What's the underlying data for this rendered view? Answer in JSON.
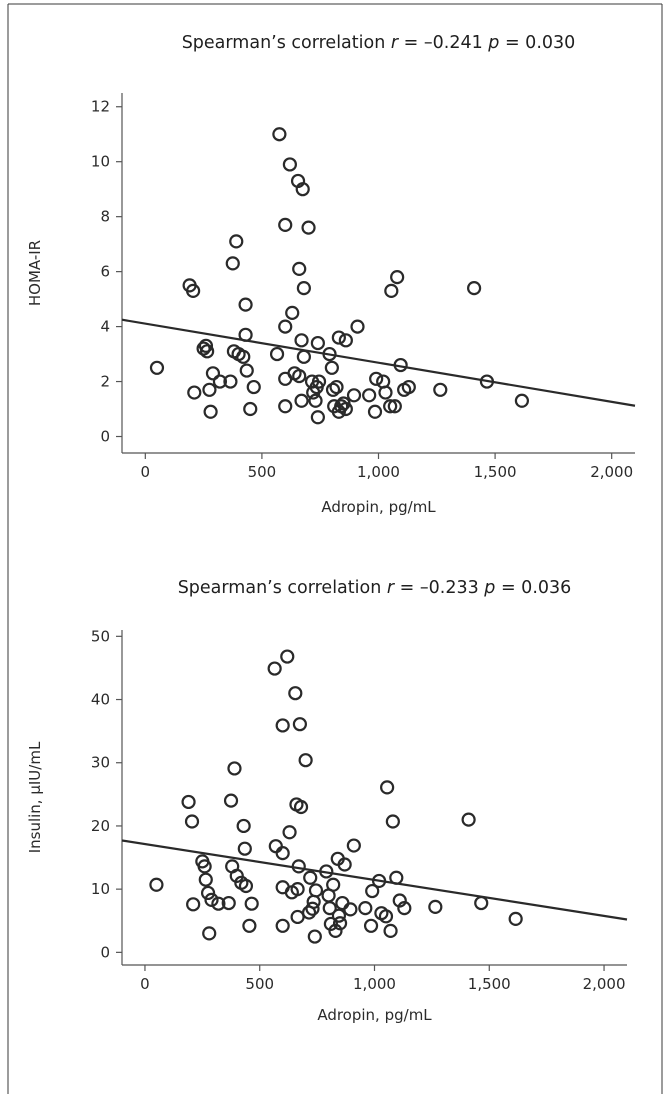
{
  "chart_data": [
    {
      "type": "scatter",
      "title": {
        "pre": "Spearman’s correlation ",
        "r_sym": "r",
        "r_val": " = –0.241 ",
        "p_sym": "p",
        "p_val": " = 0.030"
      },
      "xlabel": "Adropin, pg/mL",
      "ylabel": "HOMA-IR",
      "xlim": [
        -100,
        2100
      ],
      "ylim": [
        -0.6,
        12.5
      ],
      "xticks": [
        0,
        500,
        1000,
        1500,
        2000
      ],
      "xtick_labels": [
        "0",
        "500",
        "1,000",
        "1,500",
        "2,000"
      ],
      "yticks": [
        0,
        2,
        4,
        6,
        8,
        10,
        12
      ],
      "ytick_labels": [
        "0",
        "2",
        "4",
        "6",
        "8",
        "10",
        "12"
      ],
      "regression": {
        "x": [
          -100,
          2100
        ],
        "y": [
          4.25,
          1.12
        ]
      },
      "points": [
        [
          50,
          2.5
        ],
        [
          190,
          5.5
        ],
        [
          205,
          5.3
        ],
        [
          210,
          1.6
        ],
        [
          250,
          3.2
        ],
        [
          260,
          3.3
        ],
        [
          265,
          3.1
        ],
        [
          275,
          1.7
        ],
        [
          280,
          0.9
        ],
        [
          290,
          2.3
        ],
        [
          320,
          2.0
        ],
        [
          365,
          2.0
        ],
        [
          375,
          6.3
        ],
        [
          380,
          3.1
        ],
        [
          390,
          7.1
        ],
        [
          400,
          3.0
        ],
        [
          420,
          2.9
        ],
        [
          430,
          4.8
        ],
        [
          430,
          3.7
        ],
        [
          435,
          2.4
        ],
        [
          450,
          1.0
        ],
        [
          465,
          1.8
        ],
        [
          565,
          3.0
        ],
        [
          575,
          11.0
        ],
        [
          600,
          1.1
        ],
        [
          600,
          2.1
        ],
        [
          600,
          4.0
        ],
        [
          600,
          7.7
        ],
        [
          620,
          9.9
        ],
        [
          630,
          4.5
        ],
        [
          640,
          2.3
        ],
        [
          655,
          9.3
        ],
        [
          660,
          6.1
        ],
        [
          660,
          2.2
        ],
        [
          670,
          1.3
        ],
        [
          670,
          3.5
        ],
        [
          675,
          9.0
        ],
        [
          680,
          2.9
        ],
        [
          680,
          5.4
        ],
        [
          700,
          7.6
        ],
        [
          715,
          2.0
        ],
        [
          720,
          1.6
        ],
        [
          730,
          1.3
        ],
        [
          735,
          1.8
        ],
        [
          740,
          0.7
        ],
        [
          740,
          3.4
        ],
        [
          745,
          2.0
        ],
        [
          790,
          3.0
        ],
        [
          800,
          2.5
        ],
        [
          805,
          1.7
        ],
        [
          810,
          1.1
        ],
        [
          820,
          1.8
        ],
        [
          830,
          0.9
        ],
        [
          830,
          3.6
        ],
        [
          840,
          1.1
        ],
        [
          850,
          1.2
        ],
        [
          860,
          3.5
        ],
        [
          860,
          1.0
        ],
        [
          895,
          1.5
        ],
        [
          910,
          4.0
        ],
        [
          960,
          1.5
        ],
        [
          985,
          0.9
        ],
        [
          990,
          2.1
        ],
        [
          1020,
          2.0
        ],
        [
          1030,
          1.6
        ],
        [
          1050,
          1.1
        ],
        [
          1055,
          5.3
        ],
        [
          1070,
          1.1
        ],
        [
          1080,
          5.8
        ],
        [
          1095,
          2.6
        ],
        [
          1110,
          1.7
        ],
        [
          1130,
          1.8
        ],
        [
          1265,
          1.7
        ],
        [
          1410,
          5.4
        ],
        [
          1465,
          2.0
        ],
        [
          1615,
          1.3
        ]
      ]
    },
    {
      "type": "scatter",
      "title": {
        "pre": "Spearman’s correlation ",
        "r_sym": "r",
        "r_val": " = –0.233 ",
        "p_sym": "p",
        "p_val": " = 0.036"
      },
      "xlabel": "Adropin, pg/mL",
      "ylabel": "Insulin, μIU/mL",
      "xlim": [
        -100,
        2100
      ],
      "ylim": [
        -2,
        51
      ],
      "xticks": [
        0,
        500,
        1000,
        1500,
        2000
      ],
      "xtick_labels": [
        "0",
        "500",
        "1,000",
        "1,500",
        "2,000"
      ],
      "yticks": [
        0,
        10,
        20,
        30,
        40,
        50
      ],
      "ytick_labels": [
        "0",
        "10",
        "20",
        "30",
        "40",
        "50"
      ],
      "regression": {
        "x": [
          -100,
          2100
        ],
        "y": [
          17.7,
          5.2
        ]
      },
      "points": [
        [
          50,
          10.7
        ],
        [
          190,
          23.8
        ],
        [
          205,
          20.7
        ],
        [
          210,
          7.6
        ],
        [
          250,
          14.4
        ],
        [
          260,
          13.6
        ],
        [
          265,
          11.5
        ],
        [
          275,
          9.4
        ],
        [
          280,
          3.0
        ],
        [
          290,
          8.3
        ],
        [
          320,
          7.7
        ],
        [
          365,
          7.8
        ],
        [
          375,
          24.0
        ],
        [
          380,
          13.6
        ],
        [
          390,
          29.1
        ],
        [
          400,
          12.1
        ],
        [
          420,
          11.0
        ],
        [
          430,
          20.0
        ],
        [
          435,
          16.4
        ],
        [
          440,
          10.5
        ],
        [
          455,
          4.2
        ],
        [
          465,
          7.7
        ],
        [
          565,
          44.9
        ],
        [
          570,
          16.8
        ],
        [
          600,
          4.2
        ],
        [
          600,
          10.3
        ],
        [
          600,
          15.7
        ],
        [
          600,
          35.9
        ],
        [
          620,
          46.8
        ],
        [
          630,
          19.0
        ],
        [
          640,
          9.5
        ],
        [
          655,
          41.0
        ],
        [
          660,
          23.4
        ],
        [
          665,
          5.6
        ],
        [
          665,
          10.0
        ],
        [
          670,
          13.6
        ],
        [
          675,
          36.1
        ],
        [
          680,
          23.0
        ],
        [
          700,
          30.4
        ],
        [
          715,
          6.3
        ],
        [
          720,
          11.8
        ],
        [
          730,
          6.9
        ],
        [
          735,
          8.0
        ],
        [
          740,
          2.5
        ],
        [
          745,
          9.8
        ],
        [
          790,
          12.8
        ],
        [
          800,
          9.0
        ],
        [
          805,
          7.0
        ],
        [
          810,
          4.5
        ],
        [
          820,
          10.7
        ],
        [
          830,
          3.4
        ],
        [
          840,
          14.8
        ],
        [
          845,
          5.8
        ],
        [
          850,
          4.6
        ],
        [
          860,
          7.8
        ],
        [
          870,
          13.9
        ],
        [
          895,
          6.8
        ],
        [
          910,
          16.9
        ],
        [
          960,
          7.0
        ],
        [
          985,
          4.2
        ],
        [
          990,
          9.7
        ],
        [
          1020,
          11.3
        ],
        [
          1030,
          6.2
        ],
        [
          1050,
          5.7
        ],
        [
          1055,
          26.1
        ],
        [
          1070,
          3.4
        ],
        [
          1080,
          20.7
        ],
        [
          1095,
          11.8
        ],
        [
          1110,
          8.2
        ],
        [
          1130,
          7.0
        ],
        [
          1265,
          7.2
        ],
        [
          1410,
          21.0
        ],
        [
          1465,
          7.8
        ],
        [
          1615,
          5.3
        ]
      ]
    }
  ]
}
